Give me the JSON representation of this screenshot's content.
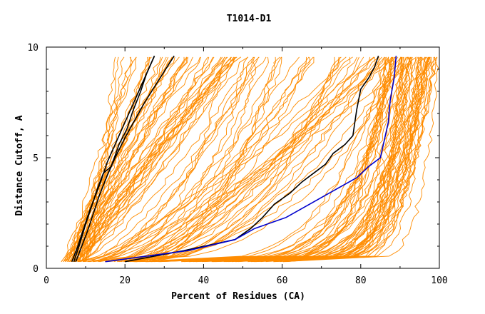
{
  "chart_data": {
    "type": "line",
    "title": "T1014-D1",
    "xlabel": "Percent of Residues (CA)",
    "ylabel": "Distance Cutoff, A",
    "xlim": [
      0,
      100
    ],
    "ylim": [
      0,
      10
    ],
    "x_ticks": [
      "0",
      "20",
      "40",
      "60",
      "80",
      "100"
    ],
    "y_ticks": [
      "0",
      "5",
      "10"
    ],
    "grid": false,
    "legend": "none",
    "colors": {
      "background_models": "#ff8c00",
      "highlight_black": "#000000",
      "highlight_blue": "#0000cc",
      "axes": "#000000"
    },
    "background_series_count": 150,
    "series": [
      {
        "color": "#000000",
        "x": [
          6.5,
          8,
          9.5,
          11,
          12.5,
          14,
          15.5,
          17.5,
          19.5,
          21.5,
          23.5,
          25.5,
          27.5
        ],
        "y": [
          0.3,
          1.0,
          1.8,
          2.6,
          3.3,
          4.0,
          4.8,
          5.6,
          6.4,
          7.2,
          8.0,
          8.8,
          9.6
        ]
      },
      {
        "color": "#000000",
        "x": [
          7,
          8.5,
          10,
          11.5,
          13,
          14.5,
          16.5,
          18.5,
          20.5,
          22,
          24,
          25.5,
          27.5
        ],
        "y": [
          0.3,
          1.1,
          2.0,
          2.8,
          3.6,
          4.3,
          4.6,
          5.6,
          6.3,
          7.1,
          8.0,
          8.8,
          9.6
        ]
      },
      {
        "color": "#000000",
        "x": [
          7.5,
          9,
          10.5,
          12,
          13.5,
          15.5,
          17.5,
          20,
          22.5,
          25,
          27.5,
          30,
          32.5
        ],
        "y": [
          0.3,
          1.0,
          1.7,
          2.5,
          3.3,
          4.2,
          5.0,
          5.9,
          6.7,
          7.5,
          8.2,
          8.9,
          9.6
        ]
      },
      {
        "color": "#000000",
        "x": [
          20,
          35,
          48,
          52,
          55,
          58,
          62,
          65,
          68,
          71,
          73,
          76,
          78,
          78.5,
          79,
          80,
          82,
          83.5,
          84.5
        ],
        "y": [
          0.3,
          0.8,
          1.3,
          1.8,
          2.3,
          2.9,
          3.4,
          3.9,
          4.3,
          4.7,
          5.2,
          5.6,
          6.0,
          6.6,
          7.2,
          8.1,
          8.6,
          9.1,
          9.6
        ]
      },
      {
        "color": "#0000cc",
        "x": [
          15,
          36,
          48,
          53,
          61,
          67,
          72,
          79,
          82,
          85,
          86,
          87,
          87.5,
          88.5,
          89
        ],
        "y": [
          0.3,
          0.8,
          1.3,
          1.8,
          2.3,
          2.9,
          3.4,
          4.1,
          4.6,
          5.0,
          5.8,
          6.6,
          7.6,
          8.6,
          9.6
        ]
      }
    ]
  }
}
